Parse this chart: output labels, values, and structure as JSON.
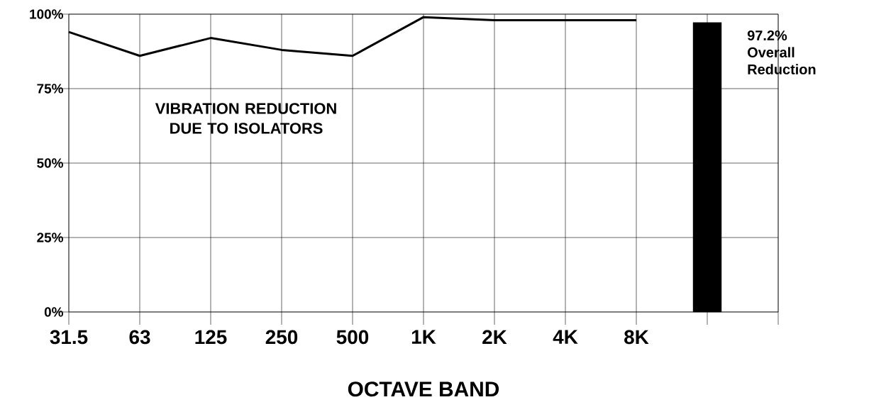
{
  "chart_data": {
    "type": "line",
    "xlabel": "OCTAVE BAND",
    "categories": [
      "31.5",
      "63",
      "125",
      "250",
      "500",
      "1K",
      "2K",
      "4K",
      "8K",
      null
    ],
    "series": [
      {
        "color": "#000000",
        "values": [
          94,
          86,
          92,
          88,
          86,
          99,
          98,
          98,
          98,
          null
        ]
      },
      {
        "type": "bar",
        "color": "#000000",
        "values": [
          null,
          null,
          null,
          null,
          null,
          null,
          null,
          null,
          null,
          97.2
        ]
      }
    ],
    "ylim": [
      0,
      100
    ],
    "yticks": [
      {
        "value": 0,
        "label": "0%"
      },
      {
        "value": 25,
        "label": "25%"
      },
      {
        "value": 50,
        "label": "50%"
      },
      {
        "value": 75,
        "label": "75%"
      },
      {
        "value": 100,
        "label": "100%"
      }
    ],
    "grid": true,
    "marker": "none",
    "line_style": "solid",
    "annotations": [
      "VIBRATION REDUCTION DUE TO ISOLATORS",
      "97.2% Overall Reduction"
    ]
  }
}
